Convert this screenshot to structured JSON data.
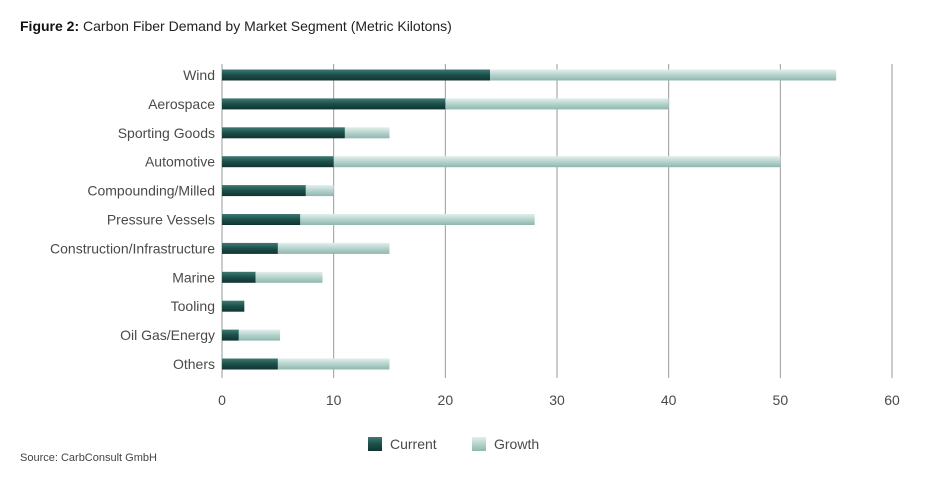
{
  "title": {
    "figure_label": "Figure 2:",
    "text": "Carbon Fiber Demand by Market Segment (Metric Kilotons)"
  },
  "source": "Source: CarbConsult GmbH",
  "colors": {
    "current": "#1d4f4a",
    "growth": "#b5d3cd",
    "gridline": "#9a9a9a",
    "axis": "#9a9a9a"
  },
  "chart_data": {
    "type": "bar",
    "orientation": "horizontal",
    "stacked": true,
    "categories": [
      "Wind",
      "Aerospace",
      "Sporting Goods",
      "Automotive",
      "Compounding/Milled",
      "Pressure Vessels",
      "Construction/Infrastructure",
      "Marine",
      "Tooling",
      "Oil Gas/Energy",
      "Others"
    ],
    "series": [
      {
        "name": "Current",
        "values": [
          24,
          20,
          11,
          10,
          7.5,
          7,
          5,
          3,
          2,
          1.5,
          5
        ]
      },
      {
        "name": "Growth",
        "values": [
          31,
          20,
          4,
          40,
          2.5,
          21,
          10,
          6,
          0,
          3.7,
          10
        ]
      }
    ],
    "xlim": [
      0,
      60
    ],
    "xticks": [
      0,
      10,
      20,
      30,
      40,
      50,
      60
    ],
    "grid": "vertical",
    "legend": "bottom-center",
    "xlabel": "",
    "ylabel": ""
  }
}
